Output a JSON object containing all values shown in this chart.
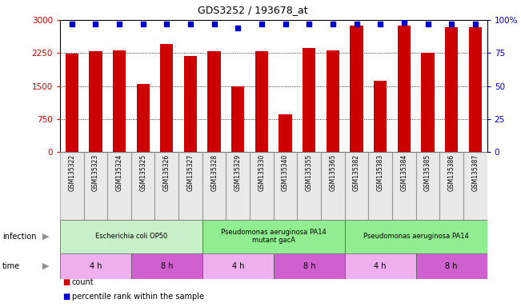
{
  "title": "GDS3252 / 193678_at",
  "samples": [
    "GSM135322",
    "GSM135323",
    "GSM135324",
    "GSM135325",
    "GSM135326",
    "GSM135327",
    "GSM135328",
    "GSM135329",
    "GSM135330",
    "GSM135340",
    "GSM135355",
    "GSM135365",
    "GSM135382",
    "GSM135383",
    "GSM135384",
    "GSM135385",
    "GSM135386",
    "GSM135387"
  ],
  "counts": [
    2230,
    2290,
    2310,
    1540,
    2450,
    2190,
    2290,
    1490,
    2290,
    860,
    2360,
    2300,
    2870,
    1620,
    2870,
    2250,
    2840,
    2840
  ],
  "percentiles": [
    97,
    97,
    97,
    97,
    97,
    97,
    97,
    94,
    97,
    97,
    97,
    97,
    97,
    97,
    98,
    97,
    97,
    97
  ],
  "bar_color": "#cc0000",
  "dot_color": "#0000cc",
  "ylim_left": [
    0,
    3000
  ],
  "ylim_right": [
    0,
    100
  ],
  "yticks_left": [
    0,
    750,
    1500,
    2250,
    3000
  ],
  "yticks_right": [
    0,
    25,
    50,
    75,
    100
  ],
  "yticklabels_left": [
    "0",
    "750",
    "1500",
    "2250",
    "3000"
  ],
  "yticklabels_right": [
    "0",
    "25",
    "50",
    "75",
    "100%"
  ],
  "infection_groups": [
    {
      "label": "Escherichia coli OP50",
      "start": 0,
      "end": 6,
      "color": "#c8f0c8"
    },
    {
      "label": "Pseudomonas aeruginosa PA14\nmutant gacA",
      "start": 6,
      "end": 12,
      "color": "#90ee90"
    },
    {
      "label": "Pseudomonas aeruginosa PA14",
      "start": 12,
      "end": 18,
      "color": "#90ee90"
    }
  ],
  "time_groups": [
    {
      "label": "4 h",
      "start": 0,
      "end": 3,
      "color": "#f0b0f0"
    },
    {
      "label": "8 h",
      "start": 3,
      "end": 6,
      "color": "#d060d0"
    },
    {
      "label": "4 h",
      "start": 6,
      "end": 9,
      "color": "#f0b0f0"
    },
    {
      "label": "8 h",
      "start": 9,
      "end": 12,
      "color": "#d060d0"
    },
    {
      "label": "4 h",
      "start": 12,
      "end": 15,
      "color": "#f0b0f0"
    },
    {
      "label": "8 h",
      "start": 15,
      "end": 18,
      "color": "#d060d0"
    }
  ],
  "legend_count_label": "count",
  "legend_pct_label": "percentile rank within the sample",
  "infection_label": "infection",
  "time_label": "time",
  "bar_width": 0.55,
  "dot_size": 25,
  "grid_style": "dotted",
  "grid_color": "#000000",
  "tick_label_color_left": "#cc0000",
  "tick_label_color_right": "#0000cc",
  "sample_box_color": "#c8c8c8",
  "label_arrow_color": "#909090"
}
